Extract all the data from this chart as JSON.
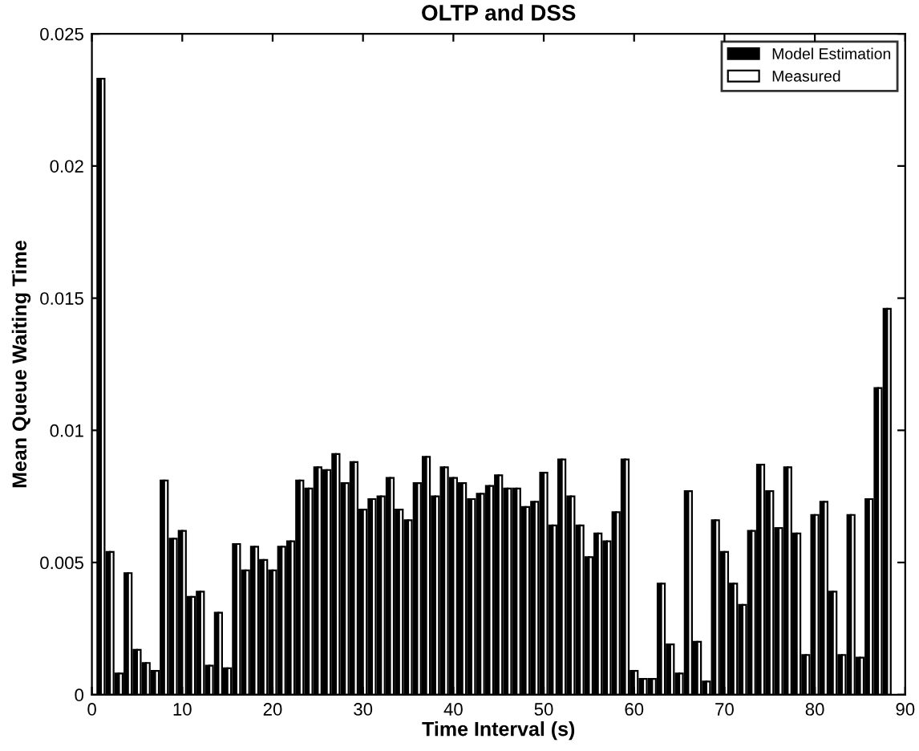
{
  "chart_data": {
    "type": "bar",
    "title": "OLTP and DSS",
    "xlabel": "Time Interval (s)",
    "ylabel": "Mean Queue Waiting Time",
    "x": [
      1,
      2,
      3,
      4,
      5,
      6,
      7,
      8,
      9,
      10,
      11,
      12,
      13,
      14,
      15,
      16,
      17,
      18,
      19,
      20,
      21,
      22,
      23,
      24,
      25,
      26,
      27,
      28,
      29,
      30,
      31,
      32,
      33,
      34,
      35,
      36,
      37,
      38,
      39,
      40,
      41,
      42,
      43,
      44,
      45,
      46,
      47,
      48,
      49,
      50,
      51,
      52,
      53,
      54,
      55,
      56,
      57,
      58,
      59,
      60,
      61,
      62,
      63,
      64,
      65,
      66,
      67,
      68,
      69,
      70,
      71,
      72,
      73,
      74,
      75,
      76,
      77,
      78,
      79,
      80,
      81,
      82,
      83,
      84,
      85,
      86,
      87,
      88
    ],
    "series": [
      {
        "name": "Model Estimation",
        "color": "#000000",
        "values": [
          0.0233,
          0.0054,
          0.0008,
          0.0046,
          0.0017,
          0.0012,
          0.0009,
          0.0081,
          0.0059,
          0.0062,
          0.0037,
          0.0039,
          0.0011,
          0.0031,
          0.001,
          0.0057,
          0.0047,
          0.0056,
          0.0051,
          0.0047,
          0.0056,
          0.0058,
          0.0081,
          0.0078,
          0.0086,
          0.0085,
          0.0091,
          0.008,
          0.0088,
          0.007,
          0.0074,
          0.0075,
          0.0082,
          0.007,
          0.0066,
          0.008,
          0.009,
          0.0075,
          0.0086,
          0.0082,
          0.008,
          0.0074,
          0.0076,
          0.0079,
          0.0083,
          0.0078,
          0.0078,
          0.0071,
          0.0073,
          0.0084,
          0.0064,
          0.0089,
          0.0075,
          0.0064,
          0.0052,
          0.0061,
          0.0058,
          0.0069,
          0.0089,
          0.0009,
          0.0006,
          0.0006,
          0.0042,
          0.0019,
          0.0008,
          0.0077,
          0.002,
          0.0005,
          0.0066,
          0.0054,
          0.0042,
          0.0034,
          0.0062,
          0.0087,
          0.0077,
          0.0063,
          0.0086,
          0.0061,
          0.0015,
          0.0068,
          0.0073,
          0.0039,
          0.0015,
          0.0068,
          0.0014,
          0.0074,
          0.0116,
          0.0146
        ]
      },
      {
        "name": "Measured",
        "color": "#ffffff",
        "values": [
          0.0233,
          0.0054,
          0.0008,
          0.0046,
          0.0017,
          0.0012,
          0.0009,
          0.0081,
          0.0059,
          0.0062,
          0.0037,
          0.0039,
          0.0011,
          0.0031,
          0.001,
          0.0057,
          0.0047,
          0.0056,
          0.0051,
          0.0047,
          0.0056,
          0.0058,
          0.0081,
          0.0078,
          0.0086,
          0.0085,
          0.0091,
          0.008,
          0.0088,
          0.007,
          0.0074,
          0.0075,
          0.0082,
          0.007,
          0.0066,
          0.008,
          0.009,
          0.0075,
          0.0086,
          0.0082,
          0.008,
          0.0074,
          0.0076,
          0.0079,
          0.0083,
          0.0078,
          0.0078,
          0.0071,
          0.0073,
          0.0084,
          0.0064,
          0.0089,
          0.0075,
          0.0064,
          0.0052,
          0.0061,
          0.0058,
          0.0069,
          0.0089,
          0.0009,
          0.0006,
          0.0006,
          0.0042,
          0.0019,
          0.0008,
          0.0077,
          0.002,
          0.0005,
          0.0066,
          0.0054,
          0.0042,
          0.0034,
          0.0062,
          0.0087,
          0.0077,
          0.0063,
          0.0086,
          0.0061,
          0.0015,
          0.0068,
          0.0073,
          0.0039,
          0.0015,
          0.0068,
          0.0014,
          0.0074,
          0.0116,
          0.0146
        ]
      }
    ],
    "xlim": [
      0,
      90
    ],
    "xticks": [
      0,
      10,
      20,
      30,
      40,
      50,
      60,
      70,
      80,
      90
    ],
    "ylim": [
      0,
      0.025
    ],
    "yticks": [
      0,
      0.005,
      0.01,
      0.015,
      0.02,
      0.025
    ],
    "grid": false,
    "legend": "top right"
  }
}
